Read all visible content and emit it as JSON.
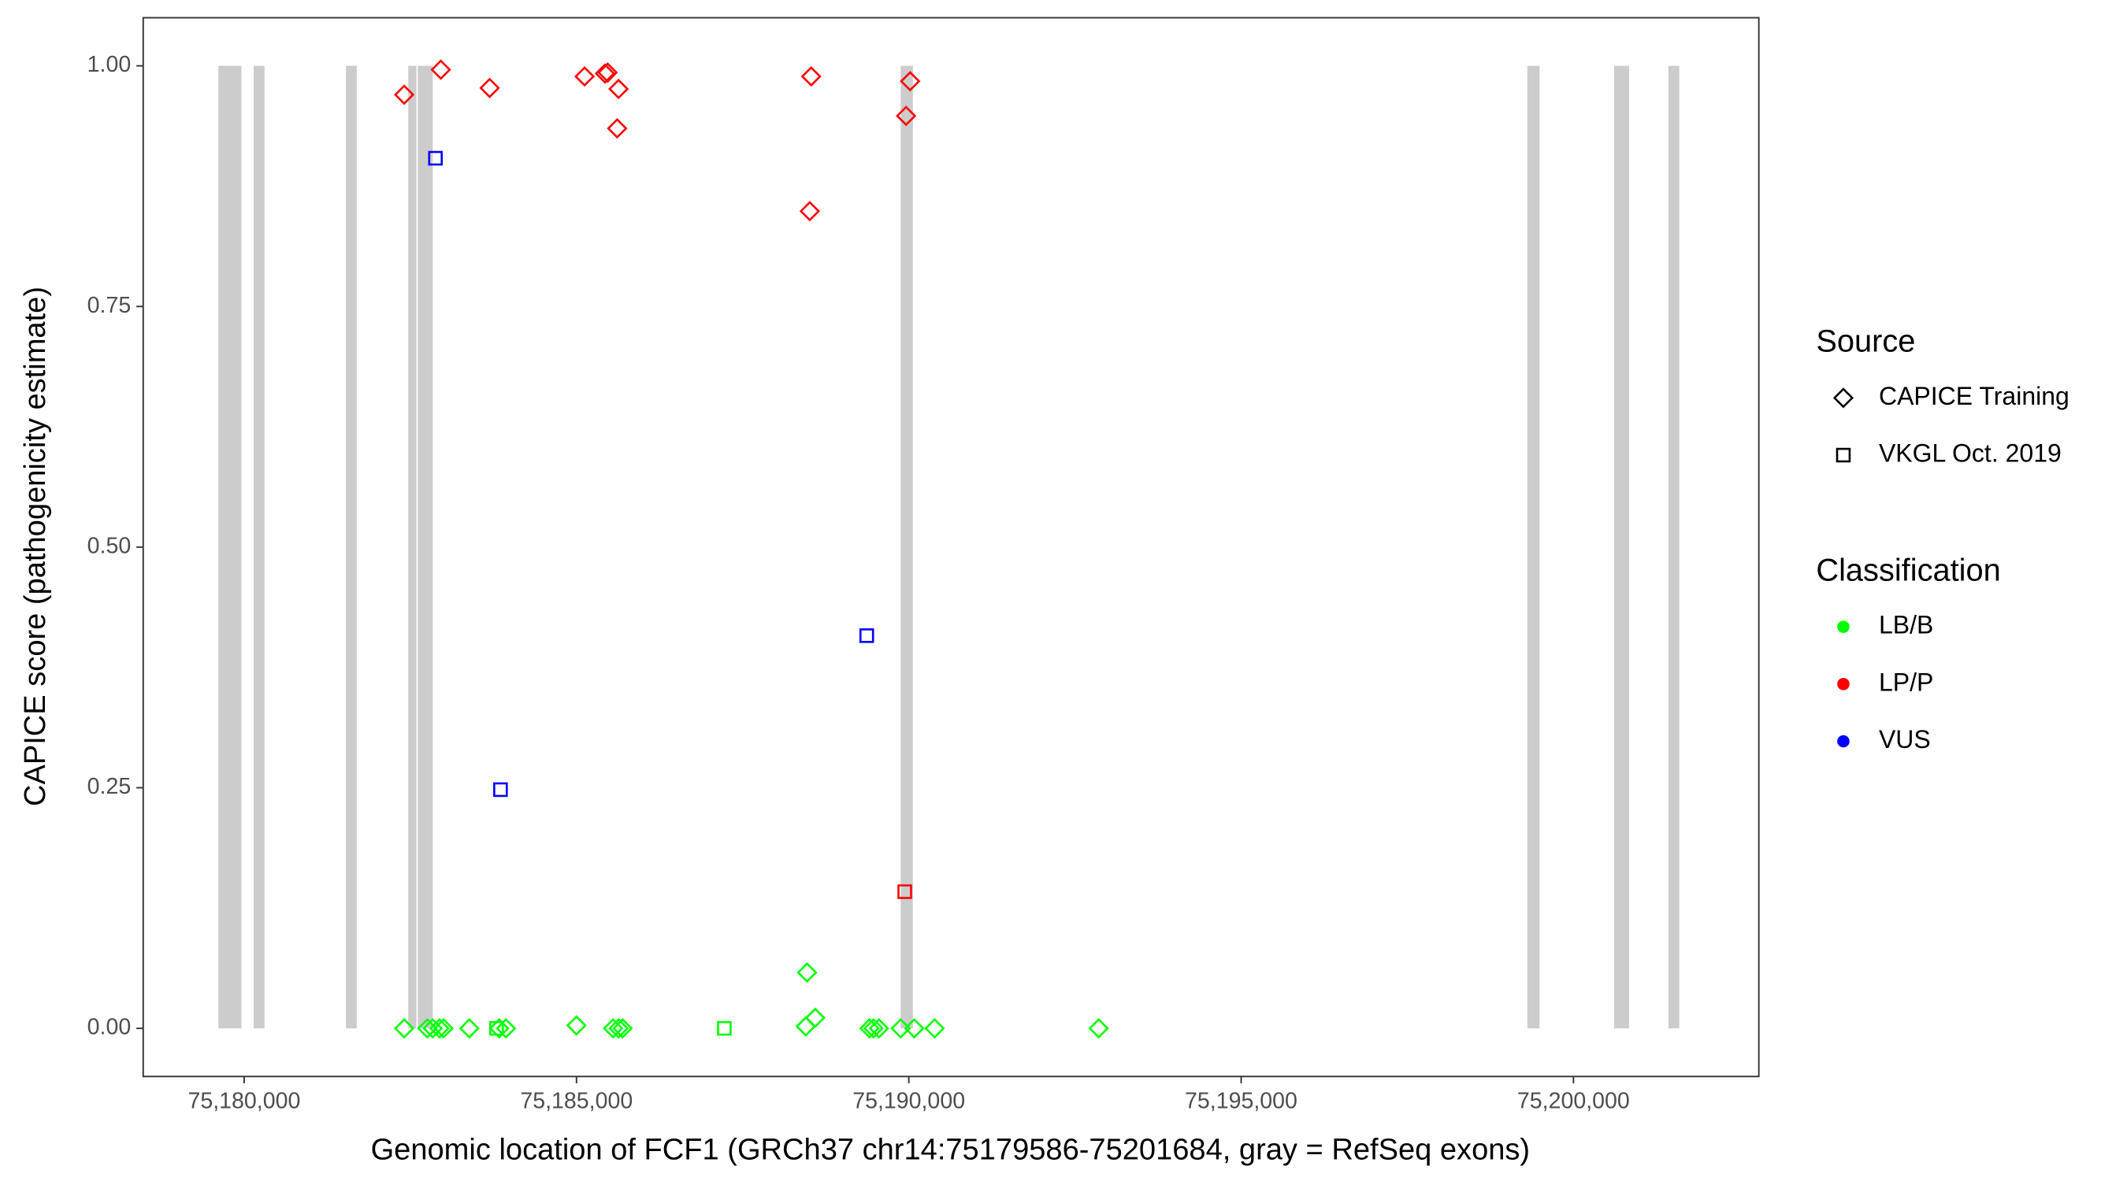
{
  "chart_data": {
    "type": "scatter",
    "x_label": "Genomic location of FCF1 (GRCh37 chr14:75179586-75201684, gray = RefSeq exons)",
    "y_label": "CAPICE score (pathogenicity estimate)",
    "xlim": [
      75178481,
      75202789
    ],
    "ylim": [
      -0.05,
      1.05
    ],
    "xticks": [
      {
        "value": 75180000,
        "label": "75,180,000"
      },
      {
        "value": 75185000,
        "label": "75,185,000"
      },
      {
        "value": 75190000,
        "label": "75,190,000"
      },
      {
        "value": 75195000,
        "label": "75,195,000"
      },
      {
        "value": 75200000,
        "label": "75,200,000"
      }
    ],
    "yticks": [
      {
        "value": 0,
        "label": "0.00"
      },
      {
        "value": 0.25,
        "label": "0.25"
      },
      {
        "value": 0.5,
        "label": "0.50"
      },
      {
        "value": 0.75,
        "label": "0.75"
      },
      {
        "value": 1,
        "label": "1.00"
      }
    ],
    "exon_color": "#cccccc",
    "exons": [
      [
        75179612,
        75179959
      ],
      [
        75180143,
        75180306
      ],
      [
        75181531,
        75181694
      ],
      [
        75182469,
        75182592
      ],
      [
        75182612,
        75182837
      ],
      [
        75189878,
        75190061
      ],
      [
        75199306,
        75199490
      ],
      [
        75200612,
        75200837
      ],
      [
        75201429,
        75201592
      ]
    ],
    "series": [
      {
        "shape": "diamond",
        "color": "#ff0000",
        "x": [
          75182408,
          75182959,
          75183694,
          75185122,
          75185429,
          75185469,
          75185633,
          75185612,
          75188531,
          75188510,
          75190020,
          75189959
        ],
        "values": [
          0.97,
          0.996,
          0.977,
          0.989,
          0.992,
          0.993,
          0.976,
          0.935,
          0.989,
          0.849,
          0.984,
          0.948
        ]
      },
      {
        "shape": "square",
        "color": "#0000ff",
        "x": [
          75182878,
          75183857,
          75189367
        ],
        "values": [
          0.904,
          0.248,
          0.408
        ]
      },
      {
        "shape": "square",
        "color": "#ff0000",
        "x": [
          75189939
        ],
        "values": [
          0.142
        ]
      },
      {
        "shape": "square",
        "color": "#00ff00",
        "x": [
          75187224,
          75183796
        ],
        "values": [
          0,
          0
        ]
      },
      {
        "shape": "diamond",
        "color": "#00ff00",
        "x": [
          75182408,
          75182755,
          75182837,
          75182939,
          75183000,
          75183388,
          75183837,
          75183939,
          75185000,
          75185551,
          75185633,
          75185694,
          75188449,
          75188469,
          75188592,
          75189408,
          75189469,
          75189551,
          75189878,
          75190082,
          75190388,
          75192857
        ],
        "values": [
          0,
          0,
          0,
          0,
          0,
          0,
          0,
          0,
          0.003,
          0,
          0,
          0,
          0.002,
          0.058,
          0.011,
          0,
          0,
          0,
          0,
          0,
          0,
          0
        ]
      }
    ],
    "legends": [
      {
        "title": "Source",
        "entries": [
          {
            "name": "CAPICE Training",
            "shape": "diamond",
            "color": "#000000"
          },
          {
            "name": "VKGL Oct. 2019",
            "shape": "square",
            "color": "#000000"
          }
        ]
      },
      {
        "title": "Classification",
        "entries": [
          {
            "name": "LB/B",
            "shape": "circle",
            "color": "#00ff00"
          },
          {
            "name": "LP/P",
            "shape": "circle",
            "color": "#ff0000"
          },
          {
            "name": "VUS",
            "shape": "circle",
            "color": "#0000ff"
          }
        ]
      }
    ]
  }
}
